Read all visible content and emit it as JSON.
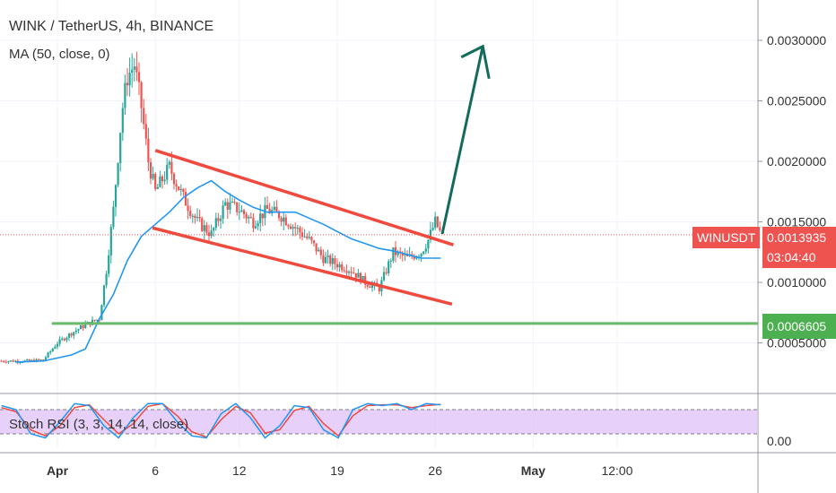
{
  "header": {
    "title": "WINK / TetherUS, 4h, BINANCE",
    "indicator": "MA (50, close, 0)"
  },
  "oscillator": {
    "label": "Stoch RSI (3, 3, 14, 14, close)",
    "axis_label": "0.00"
  },
  "symbol_tag": {
    "symbol": "WINUSDT",
    "price": "0.0013935",
    "countdown": "03:04:40"
  },
  "support_tag": {
    "price": "0.0006605"
  },
  "colors": {
    "up": "#26a69a",
    "down": "#ef5350",
    "ma": "#2196f3",
    "channel": "#f0493e",
    "support": "#66bb6a",
    "arrow": "#136b5c",
    "stoch_k": "#2196f3",
    "stoch_d": "#f0493e",
    "stoch_band": "#e1c4f8"
  },
  "chart_data": {
    "type": "line",
    "y_axis": {
      "ticks": [
        "0.0030000",
        "0.0025000",
        "0.0020000",
        "0.0015000",
        "0.0010000",
        "0.0005000"
      ],
      "range": [
        0.0,
        0.0032
      ]
    },
    "x_axis": {
      "ticks": [
        "Apr",
        "6",
        "12",
        "19",
        "26",
        "May",
        "12:00"
      ],
      "tick_bold": [
        true,
        false,
        false,
        false,
        false,
        true,
        false
      ]
    },
    "price_path": [
      [
        -2,
        0.00035
      ],
      [
        -1,
        0.00036
      ],
      [
        0,
        0.0005
      ],
      [
        1,
        0.00058
      ],
      [
        2,
        0.00065
      ],
      [
        3,
        0.0007
      ],
      [
        3.5,
        0.0011
      ],
      [
        4,
        0.0016
      ],
      [
        4.3,
        0.002
      ],
      [
        4.6,
        0.0024
      ],
      [
        5,
        0.0027
      ],
      [
        5.5,
        0.0028
      ],
      [
        6,
        0.00245
      ],
      [
        6.5,
        0.002
      ],
      [
        7,
        0.00175
      ],
      [
        8,
        0.00195
      ],
      [
        9,
        0.0017
      ],
      [
        10,
        0.0015
      ],
      [
        11,
        0.0014
      ],
      [
        12,
        0.00165
      ],
      [
        13,
        0.0016
      ],
      [
        14,
        0.0015
      ],
      [
        15,
        0.0016
      ],
      [
        16,
        0.00155
      ],
      [
        17,
        0.00145
      ],
      [
        18,
        0.00135
      ],
      [
        19,
        0.0012
      ],
      [
        20,
        0.00115
      ],
      [
        21,
        0.0011
      ],
      [
        22,
        0.001
      ],
      [
        23,
        0.00095
      ],
      [
        23.5,
        0.0011
      ],
      [
        24,
        0.00125
      ],
      [
        25,
        0.0012
      ],
      [
        26,
        0.00125
      ],
      [
        26.5,
        0.00135
      ],
      [
        27,
        0.0015
      ],
      [
        27.4,
        0.0014
      ]
    ],
    "ma_50": [
      [
        -3,
        0.00034
      ],
      [
        -1,
        0.00035
      ],
      [
        1,
        0.0004
      ],
      [
        2,
        0.00045
      ],
      [
        3,
        0.0007
      ],
      [
        4,
        0.0009
      ],
      [
        5,
        0.00118
      ],
      [
        6,
        0.00138
      ],
      [
        7,
        0.00148
      ],
      [
        8,
        0.00158
      ],
      [
        9,
        0.0017
      ],
      [
        10,
        0.00178
      ],
      [
        11,
        0.00184
      ],
      [
        12,
        0.00175
      ],
      [
        13,
        0.00168
      ],
      [
        14,
        0.00162
      ],
      [
        15,
        0.00158
      ],
      [
        16,
        0.00158
      ],
      [
        17,
        0.00158
      ],
      [
        18,
        0.00153
      ],
      [
        19,
        0.00148
      ],
      [
        20,
        0.00142
      ],
      [
        21,
        0.00136
      ],
      [
        22,
        0.00132
      ],
      [
        23,
        0.00128
      ],
      [
        24,
        0.00126
      ],
      [
        25,
        0.00123
      ],
      [
        26,
        0.0012
      ],
      [
        27,
        0.0012
      ],
      [
        27.4,
        0.0012
      ]
    ],
    "channel_upper": [
      [
        7,
        0.00209
      ],
      [
        28.3,
        0.00131
      ]
    ],
    "channel_lower": [
      [
        6.8,
        0.00145
      ],
      [
        28.2,
        0.00082
      ]
    ],
    "support_level": 0.0006605,
    "last_price": 0.0013935,
    "projection_arrow": [
      [
        27.5,
        0.0014
      ],
      [
        30.4,
        0.00295
      ]
    ],
    "stoch_k": [
      90,
      80,
      20,
      10,
      50,
      95,
      90,
      40,
      10,
      60,
      95,
      95,
      50,
      15,
      10,
      70,
      95,
      60,
      10,
      40,
      90,
      85,
      30,
      10,
      80,
      95,
      90,
      95,
      80,
      95,
      92
    ],
    "stoch_d": [
      85,
      75,
      30,
      15,
      40,
      85,
      92,
      55,
      20,
      45,
      88,
      95,
      65,
      25,
      12,
      55,
      88,
      72,
      22,
      30,
      78,
      88,
      45,
      15,
      65,
      90,
      92,
      92,
      85,
      90,
      93
    ],
    "stoch_levels": [
      80,
      20
    ]
  }
}
